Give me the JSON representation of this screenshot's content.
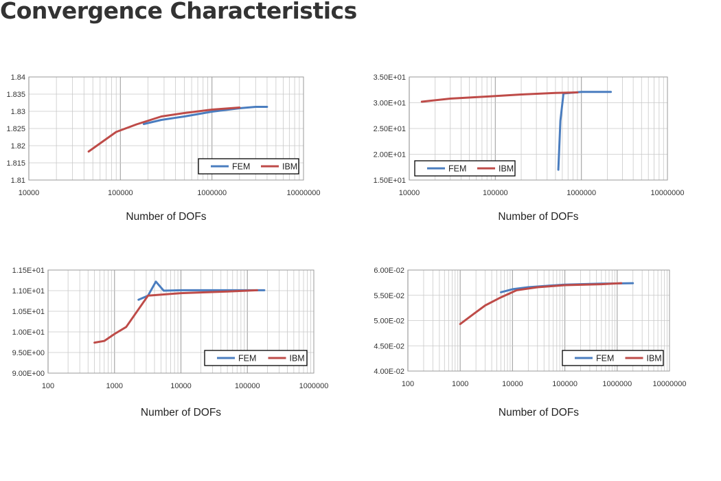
{
  "page": {
    "title": "Convergence Characteristics"
  },
  "colors": {
    "fem": "#4a7dbf",
    "ibm": "#be4b48",
    "grid": "#c8c8c8",
    "frame": "#999999"
  },
  "chart_data": [
    {
      "type": "line",
      "x_scale": "log",
      "xlabel": "Number of DOFs",
      "ylabel": "",
      "xlim": [
        10000,
        10000000
      ],
      "ylim": [
        1.81,
        1.84
      ],
      "x_ticks": [
        "10000",
        "100000",
        "1000000",
        "10000000"
      ],
      "y_ticks": [
        "1.81",
        "1.815",
        "1.82",
        "1.825",
        "1.83",
        "1.835",
        "1.84"
      ],
      "legend": "bottom-right",
      "series": [
        {
          "name": "FEM",
          "color": "#4a7dbf",
          "points": [
            [
              180000,
              1.8263
            ],
            [
              280000,
              1.8275
            ],
            [
              500000,
              1.8285
            ],
            [
              1000000,
              1.8299
            ],
            [
              2000000,
              1.8309
            ],
            [
              3000000,
              1.8313
            ],
            [
              4000000,
              1.8313
            ]
          ]
        },
        {
          "name": "IBM",
          "color": "#be4b48",
          "points": [
            [
              45000,
              1.8183
            ],
            [
              90000,
              1.824
            ],
            [
              150000,
              1.8262
            ],
            [
              280000,
              1.8285
            ],
            [
              500000,
              1.8295
            ],
            [
              1000000,
              1.8305
            ],
            [
              2000000,
              1.8311
            ]
          ]
        }
      ]
    },
    {
      "type": "line",
      "x_scale": "log",
      "xlabel": "Number of DOFs",
      "ylabel": "",
      "xlim": [
        10000,
        10000000
      ],
      "ylim": [
        15,
        35
      ],
      "x_ticks": [
        "10000",
        "100000",
        "1000000",
        "10000000"
      ],
      "y_ticks": [
        "1.50E+01",
        "2.00E+01",
        "2.50E+01",
        "3.00E+01",
        "3.50E+01"
      ],
      "legend": "bottom-left",
      "series": [
        {
          "name": "FEM",
          "color": "#4a7dbf",
          "points": [
            [
              540000,
              17.0
            ],
            [
              570000,
              26.5
            ],
            [
              620000,
              31.8
            ],
            [
              1000000,
              32.1
            ],
            [
              2200000,
              32.1
            ]
          ]
        },
        {
          "name": "IBM",
          "color": "#be4b48",
          "points": [
            [
              14000,
              30.2
            ],
            [
              30000,
              30.8
            ],
            [
              80000,
              31.2
            ],
            [
              200000,
              31.6
            ],
            [
              500000,
              31.9
            ],
            [
              900000,
              32.0
            ]
          ]
        }
      ]
    },
    {
      "type": "line",
      "x_scale": "log",
      "xlabel": "Number of DOFs",
      "ylabel": "",
      "xlim": [
        100,
        1000000
      ],
      "ylim": [
        9.0,
        11.5
      ],
      "x_ticks": [
        "100",
        "1000",
        "10000",
        "100000",
        "1000000"
      ],
      "y_ticks": [
        "9.00E+00",
        "9.50E+00",
        "1.00E+01",
        "1.05E+01",
        "1.10E+01",
        "1.15E+01"
      ],
      "legend": "bottom-right",
      "series": [
        {
          "name": "FEM",
          "color": "#4a7dbf",
          "points": [
            [
              2300,
              10.78
            ],
            [
              3200,
              10.88
            ],
            [
              4200,
              11.22
            ],
            [
              5500,
              11.0
            ],
            [
              10000,
              11.01
            ],
            [
              50000,
              11.01
            ],
            [
              180000,
              11.01
            ]
          ]
        },
        {
          "name": "IBM",
          "color": "#be4b48",
          "points": [
            [
              500,
              9.74
            ],
            [
              700,
              9.78
            ],
            [
              1000,
              9.95
            ],
            [
              1500,
              10.12
            ],
            [
              3200,
              10.88
            ],
            [
              10000,
              10.94
            ],
            [
              50000,
              10.98
            ],
            [
              140000,
              11.01
            ]
          ]
        }
      ]
    },
    {
      "type": "line",
      "x_scale": "log",
      "xlabel": "Number of DOFs",
      "ylabel": "",
      "xlim": [
        100,
        10000000
      ],
      "ylim": [
        0.04,
        0.06
      ],
      "x_ticks": [
        "100",
        "1000",
        "10000",
        "100000",
        "1000000",
        "10000000"
      ],
      "y_ticks": [
        "4.00E-02",
        "4.50E-02",
        "5.00E-02",
        "5.50E-02",
        "6.00E-02"
      ],
      "legend": "bottom-right",
      "series": [
        {
          "name": "FEM",
          "color": "#4a7dbf",
          "points": [
            [
              6000,
              0.0556
            ],
            [
              10000,
              0.0562
            ],
            [
              20000,
              0.0566
            ],
            [
              50000,
              0.0569
            ],
            [
              100000,
              0.0571
            ],
            [
              500000,
              0.0573
            ],
            [
              2000000,
              0.0574
            ]
          ]
        },
        {
          "name": "IBM",
          "color": "#be4b48",
          "points": [
            [
              1000,
              0.0493
            ],
            [
              1800,
              0.0513
            ],
            [
              3000,
              0.053
            ],
            [
              6000,
              0.0546
            ],
            [
              12000,
              0.056
            ],
            [
              30000,
              0.0566
            ],
            [
              100000,
              0.057
            ],
            [
              500000,
              0.0572
            ],
            [
              1200000,
              0.0574
            ]
          ]
        }
      ]
    }
  ]
}
